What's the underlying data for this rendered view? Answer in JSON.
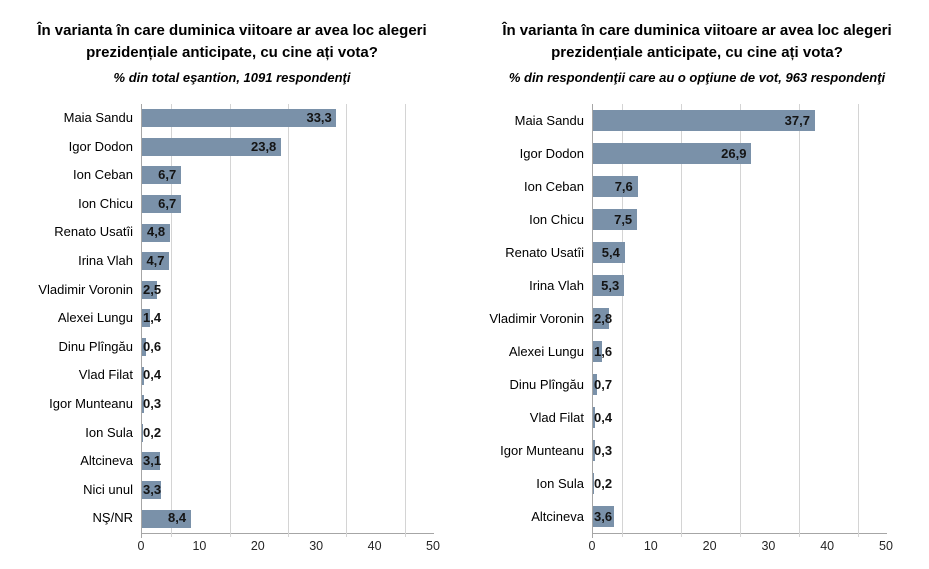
{
  "style": {
    "bar_color": "#7a91a9",
    "gridline_color": "#d4d4d4",
    "axis_color": "#a6a6a6",
    "title_color": "#000000",
    "value_label_color": "#141414"
  },
  "chart_data": [
    {
      "type": "bar",
      "orientation": "horizontal",
      "title": "În varianta în care duminica viitoare ar avea loc alegeri prezidențiale anticipate, cu cine ați vota?",
      "subtitle": "% din total eşantion, 1091 respondenţi",
      "categories": [
        "Maia Sandu",
        "Igor Dodon",
        "Ion Ceban",
        "Ion Chicu",
        "Renato Usatîi",
        "Irina Vlah",
        "Vladimir Voronin",
        "Alexei Lungu",
        "Dinu Plîngău",
        "Vlad Filat",
        "Igor Munteanu",
        "Ion Sula",
        "Altcineva",
        "Nici unul",
        "NŞ/NR"
      ],
      "values": [
        33.3,
        23.8,
        6.7,
        6.7,
        4.8,
        4.7,
        2.5,
        1.4,
        0.6,
        0.4,
        0.3,
        0.2,
        3.1,
        3.3,
        8.4
      ],
      "value_labels": [
        "33,3",
        "23,8",
        "6,7",
        "6,7",
        "4,8",
        "4,7",
        "2,5",
        "1,4",
        "0,6",
        "0,4",
        "0,3",
        "0,2",
        "3,1",
        "3,3",
        "8,4"
      ],
      "xlim": [
        0,
        50
      ],
      "x_ticks": [
        0,
        10,
        20,
        30,
        40,
        50
      ],
      "gridlines_at": [
        5,
        15,
        25,
        35,
        45
      ],
      "legend": "none",
      "grid": "vertical-minor"
    },
    {
      "type": "bar",
      "orientation": "horizontal",
      "title": "În varianta în care duminica viitoare ar avea loc alegeri prezidențiale anticipate, cu cine ați vota?",
      "subtitle": "% din respondenţii care au o opţiune de vot, 963 respondenţi",
      "categories": [
        "Maia Sandu",
        "Igor Dodon",
        "Ion Ceban",
        "Ion Chicu",
        "Renato Usatîi",
        "Irina Vlah",
        "Vladimir Voronin",
        "Alexei Lungu",
        "Dinu Plîngău",
        "Vlad Filat",
        "Igor Munteanu",
        "Ion Sula",
        "Altcineva"
      ],
      "values": [
        37.7,
        26.9,
        7.6,
        7.5,
        5.4,
        5.3,
        2.8,
        1.6,
        0.7,
        0.4,
        0.3,
        0.2,
        3.6
      ],
      "value_labels": [
        "37,7",
        "26,9",
        "7,6",
        "7,5",
        "5,4",
        "5,3",
        "2,8",
        "1,6",
        "0,7",
        "0,4",
        "0,3",
        "0,2",
        "3,6"
      ],
      "xlim": [
        0,
        50
      ],
      "x_ticks": [
        0,
        10,
        20,
        30,
        40,
        50
      ],
      "gridlines_at": [
        5,
        15,
        25,
        35,
        45
      ],
      "legend": "none",
      "grid": "vertical-minor"
    }
  ]
}
